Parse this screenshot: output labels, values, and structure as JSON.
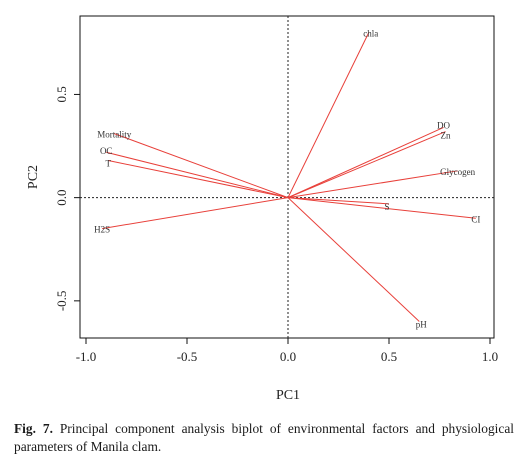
{
  "chart_data": {
    "type": "scatter",
    "subtype": "pca-biplot",
    "title": "",
    "xlabel": "PC1",
    "ylabel": "PC2",
    "xlim": [
      -1.0,
      1.0
    ],
    "ylim": [
      -0.68,
      0.88
    ],
    "xticks": [
      "-1.0",
      "-0.5",
      "0.0",
      "0.5",
      "1.0"
    ],
    "yticks": [
      "-0.5",
      "0.0",
      "0.5"
    ],
    "xtick_values": [
      -1.0,
      -0.5,
      0.0,
      0.5,
      1.0
    ],
    "ytick_values": [
      -0.5,
      0.0,
      0.5
    ],
    "reference_lines": {
      "x": 0,
      "y": 0,
      "style": "dotted"
    },
    "vector_color": "#e8403a",
    "vectors": [
      {
        "label": "chla",
        "x": 0.4,
        "y": 0.8
      },
      {
        "label": "DO",
        "x": 0.77,
        "y": 0.34
      },
      {
        "label": "Zn",
        "x": 0.78,
        "y": 0.32
      },
      {
        "label": "Glycogen",
        "x": 0.84,
        "y": 0.13
      },
      {
        "label": "S",
        "x": 0.5,
        "y": -0.03
      },
      {
        "label": "CI",
        "x": 0.93,
        "y": -0.1
      },
      {
        "label": "pH",
        "x": 0.65,
        "y": -0.6
      },
      {
        "label": "H2S",
        "x": -0.92,
        "y": -0.15
      },
      {
        "label": "Mortality",
        "x": -0.86,
        "y": 0.31
      },
      {
        "label": "OC",
        "x": -0.9,
        "y": 0.22
      },
      {
        "label": "T",
        "x": -0.89,
        "y": 0.18
      }
    ]
  },
  "caption": {
    "prefix": "Fig. 7.",
    "text": " Principal component analysis biplot of environmental factors and physiological parameters of Manila clam."
  }
}
